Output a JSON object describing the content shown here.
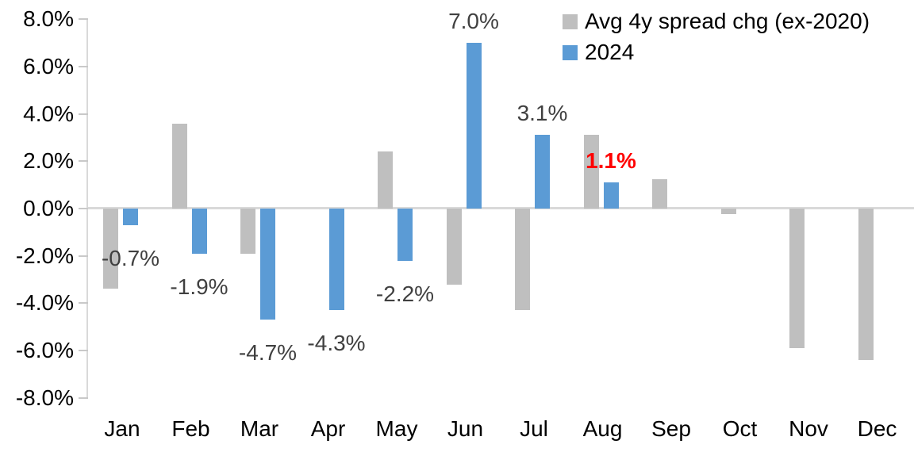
{
  "chart_data": {
    "type": "bar",
    "title": "",
    "categories": [
      "Jan",
      "Feb",
      "Mar",
      "Apr",
      "May",
      "Jun",
      "Jul",
      "Aug",
      "Sep",
      "Oct",
      "Nov",
      "Dec"
    ],
    "series": [
      {
        "name": "Avg 4y spread chg (ex-2020)",
        "color": "#BFBFBF",
        "values": [
          -3.4,
          3.6,
          -1.9,
          0.0,
          2.4,
          -3.2,
          -4.3,
          3.1,
          1.25,
          -0.25,
          -5.9,
          -6.4
        ]
      },
      {
        "name": "2024",
        "color": "#5B9BD5",
        "values": [
          -0.7,
          -1.9,
          -4.7,
          -4.3,
          -2.2,
          7.0,
          3.1,
          1.1,
          null,
          null,
          null,
          null
        ]
      }
    ],
    "y_axis": {
      "min": -8,
      "max": 8,
      "step": 2,
      "tick_labels": [
        "8.0%",
        "6.0%",
        "4.0%",
        "2.0%",
        "0.0%",
        "-2.0%",
        "-4.0%",
        "-6.0%",
        "-8.0%"
      ],
      "format": "percent"
    },
    "x_axis": {
      "labels": [
        "Jan",
        "Feb",
        "Mar",
        "Apr",
        "May",
        "Jun",
        "Jul",
        "Aug",
        "Sep",
        "Oct",
        "Nov",
        "Dec"
      ]
    },
    "legend_position": "top-right",
    "grid": "zero-line-only",
    "data_labels": [
      {
        "category": "Jan",
        "series": "2024",
        "text": "-0.7%",
        "placement": "below",
        "color": "#404040",
        "bold": false
      },
      {
        "category": "Feb",
        "series": "2024",
        "text": "-1.9%",
        "placement": "below",
        "color": "#404040",
        "bold": false
      },
      {
        "category": "Mar",
        "series": "2024",
        "text": "-4.7%",
        "placement": "below",
        "color": "#404040",
        "bold": false
      },
      {
        "category": "Apr",
        "series": "2024",
        "text": "-4.3%",
        "placement": "below",
        "color": "#404040",
        "bold": false
      },
      {
        "category": "May",
        "series": "2024",
        "text": "-2.2%",
        "placement": "below",
        "color": "#404040",
        "bold": false
      },
      {
        "category": "Jun",
        "series": "2024",
        "text": "7.0%",
        "placement": "above",
        "color": "#404040",
        "bold": false
      },
      {
        "category": "Jul",
        "series": "2024",
        "text": "3.1%",
        "placement": "above",
        "color": "#404040",
        "bold": false
      },
      {
        "category": "Aug",
        "series": "2024",
        "text": "1.1%",
        "placement": "above",
        "color": "#FF0000",
        "bold": true
      }
    ]
  },
  "colors": {
    "background": "#FFFFFF",
    "axis_line": "#D9D9D9",
    "tick_mark": "#C9C9C9",
    "axis_text": "#000000",
    "data_label_text": "#404040",
    "highlight_label": "#FF0000",
    "series_gray": "#BFBFBF",
    "series_blue": "#5B9BD5"
  }
}
